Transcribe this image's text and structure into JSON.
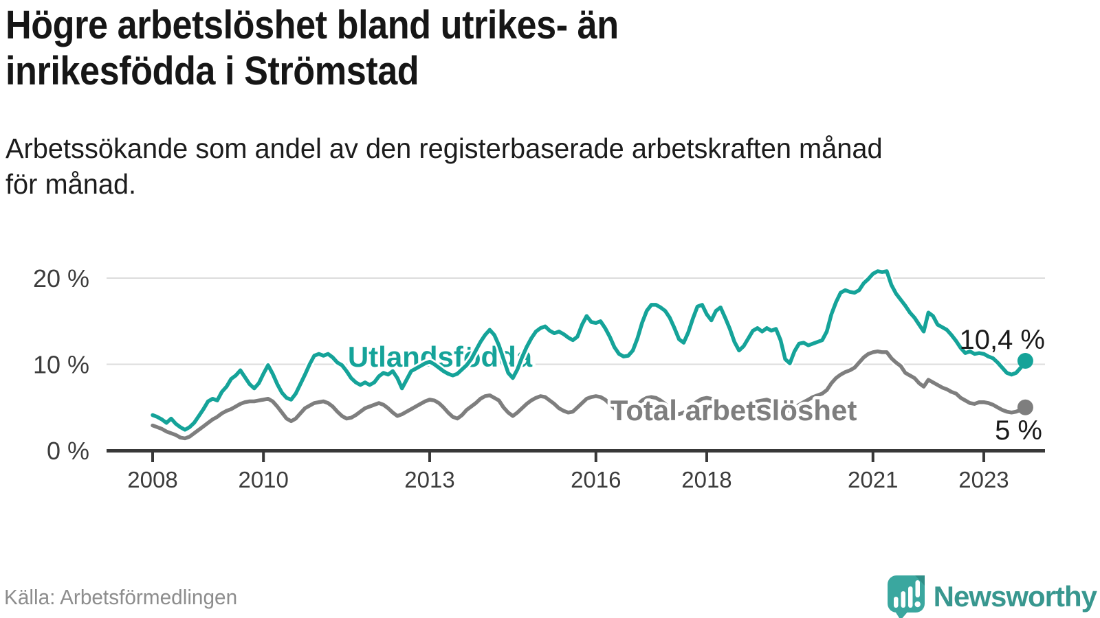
{
  "header": {
    "title_line1": "Högre arbetslöshet bland utrikes- än",
    "title_line2": "inrikesfödda i Strömstad",
    "subtitle_line1": "Arbetssökande som andel av den registerbaserade arbetskraften månad",
    "subtitle_line2": "för månad."
  },
  "footer": {
    "source": "Källa: Arbetsförmedlingen",
    "brand": "Newsworthy",
    "brand_icon": "newsworthy-speech-bubble-bar-chart-icon",
    "brand_icon_color": "#3aa79f",
    "brand_text_color": "#38978f"
  },
  "chart_data": {
    "type": "line",
    "title": "Högre arbetslöshet bland utrikes- än inrikesfödda i Strömstad",
    "subtitle": "Arbetssökande som andel av den registerbaserade arbetskraften månad för månad.",
    "unit": "%",
    "x_start": "2008-01",
    "x_end": "2023-10",
    "x_interval": "monthly",
    "x_tick_years": [
      2008,
      2010,
      2013,
      2016,
      2018,
      2021,
      2023
    ],
    "x_tick_labels": [
      "2008",
      "2010",
      "2013",
      "2016",
      "2018",
      "2021",
      "2023"
    ],
    "y_tick_values": [
      0,
      10,
      20
    ],
    "y_tick_labels": [
      "0 %",
      "10 %",
      "20 %"
    ],
    "ylim": [
      0,
      22
    ],
    "grid": "horizontal-only",
    "legend": "inline-labels",
    "series": [
      {
        "name": "Utlandsfödda",
        "color": "#15a399",
        "end_label": "10,4 %",
        "end_value": 10.4,
        "values": [
          4.1,
          3.9,
          3.6,
          3.2,
          3.7,
          3.1,
          2.7,
          2.4,
          2.7,
          3.2,
          4.0,
          4.8,
          5.7,
          6.0,
          5.8,
          6.8,
          7.4,
          8.3,
          8.7,
          9.3,
          8.5,
          7.7,
          7.2,
          7.8,
          8.9,
          9.9,
          8.9,
          7.7,
          6.7,
          6.1,
          5.9,
          6.6,
          7.7,
          8.8,
          10.0,
          11.0,
          11.2,
          11.0,
          11.2,
          10.8,
          10.2,
          9.9,
          9.2,
          8.4,
          7.9,
          7.6,
          7.9,
          7.6,
          7.9,
          8.6,
          9.0,
          8.8,
          9.2,
          8.4,
          7.2,
          8.2,
          9.2,
          9.5,
          9.8,
          10.1,
          10.3,
          10.0,
          9.6,
          9.2,
          8.9,
          8.7,
          8.9,
          9.4,
          9.9,
          10.6,
          11.6,
          12.6,
          13.4,
          14.0,
          13.4,
          12.2,
          10.6,
          9.0,
          8.4,
          9.4,
          10.8,
          12.0,
          13.0,
          13.8,
          14.2,
          14.4,
          13.9,
          13.6,
          13.8,
          13.5,
          13.1,
          12.8,
          13.2,
          14.6,
          15.6,
          14.9,
          14.8,
          15.0,
          14.2,
          13.2,
          12.0,
          11.2,
          10.9,
          11.0,
          11.6,
          13.0,
          14.8,
          16.2,
          16.9,
          16.9,
          16.6,
          16.2,
          15.4,
          14.2,
          12.9,
          12.5,
          13.7,
          15.3,
          16.7,
          16.9,
          15.8,
          15.1,
          16.2,
          16.6,
          15.4,
          14.1,
          12.6,
          11.6,
          12.1,
          13.0,
          13.9,
          14.2,
          13.8,
          14.2,
          13.9,
          14.1,
          12.8,
          10.6,
          10.1,
          11.5,
          12.4,
          12.5,
          12.2,
          12.4,
          12.6,
          12.8,
          13.8,
          15.8,
          17.2,
          18.3,
          18.6,
          18.4,
          18.3,
          18.6,
          19.4,
          19.9,
          20.5,
          20.8,
          20.7,
          20.8,
          19.2,
          18.2,
          17.5,
          16.8,
          16.0,
          15.4,
          14.6,
          13.8,
          16.0,
          15.6,
          14.6,
          14.3,
          14.0,
          13.4,
          12.7,
          11.9,
          11.3,
          11.5,
          11.2,
          11.3,
          11.2,
          10.9,
          10.7,
          10.2,
          9.6,
          9.0,
          8.8,
          9.0,
          9.6,
          10.4
        ]
      },
      {
        "name": "Total arbetslöshet",
        "color": "#7e7e7e",
        "end_label": "5 %",
        "end_value": 5.0,
        "values": [
          2.9,
          2.7,
          2.5,
          2.2,
          2.0,
          1.8,
          1.5,
          1.4,
          1.6,
          2.0,
          2.4,
          2.8,
          3.2,
          3.6,
          3.9,
          4.3,
          4.6,
          4.8,
          5.1,
          5.4,
          5.6,
          5.7,
          5.7,
          5.8,
          5.9,
          6.0,
          5.7,
          5.1,
          4.4,
          3.7,
          3.4,
          3.7,
          4.3,
          4.9,
          5.2,
          5.5,
          5.6,
          5.7,
          5.5,
          5.1,
          4.5,
          4.0,
          3.7,
          3.8,
          4.1,
          4.5,
          4.9,
          5.1,
          5.3,
          5.5,
          5.3,
          4.9,
          4.4,
          4.0,
          4.2,
          4.5,
          4.8,
          5.1,
          5.4,
          5.7,
          5.9,
          5.8,
          5.5,
          5.0,
          4.4,
          3.9,
          3.7,
          4.1,
          4.7,
          5.1,
          5.5,
          6.0,
          6.3,
          6.4,
          6.1,
          5.8,
          5.0,
          4.4,
          4.0,
          4.4,
          4.9,
          5.4,
          5.8,
          6.1,
          6.3,
          6.2,
          5.8,
          5.4,
          4.9,
          4.6,
          4.4,
          4.5,
          5.0,
          5.5,
          6.0,
          6.2,
          6.3,
          6.2,
          5.9,
          5.4,
          4.9,
          4.5,
          4.3,
          4.5,
          4.9,
          5.3,
          5.8,
          6.1,
          6.2,
          6.1,
          5.8,
          5.4,
          4.9,
          4.4,
          4.2,
          4.4,
          4.8,
          5.3,
          5.7,
          6.0,
          6.1,
          6.0,
          5.7,
          5.3,
          4.8,
          4.4,
          4.2,
          4.3,
          4.6,
          5.0,
          5.4,
          5.7,
          5.8,
          5.9,
          5.7,
          5.4,
          5.0,
          4.7,
          4.6,
          4.9,
          5.3,
          5.6,
          5.9,
          6.2,
          6.4,
          6.6,
          7.0,
          7.8,
          8.4,
          8.8,
          9.1,
          9.3,
          9.6,
          10.2,
          10.8,
          11.2,
          11.4,
          11.5,
          11.4,
          11.4,
          10.7,
          10.2,
          9.8,
          9.0,
          8.7,
          8.4,
          7.8,
          7.4,
          8.2,
          7.9,
          7.6,
          7.3,
          7.1,
          6.8,
          6.6,
          6.1,
          5.8,
          5.5,
          5.4,
          5.6,
          5.6,
          5.5,
          5.3,
          5.0,
          4.7,
          4.5,
          4.4,
          4.5,
          4.7,
          5.0
        ]
      }
    ]
  }
}
